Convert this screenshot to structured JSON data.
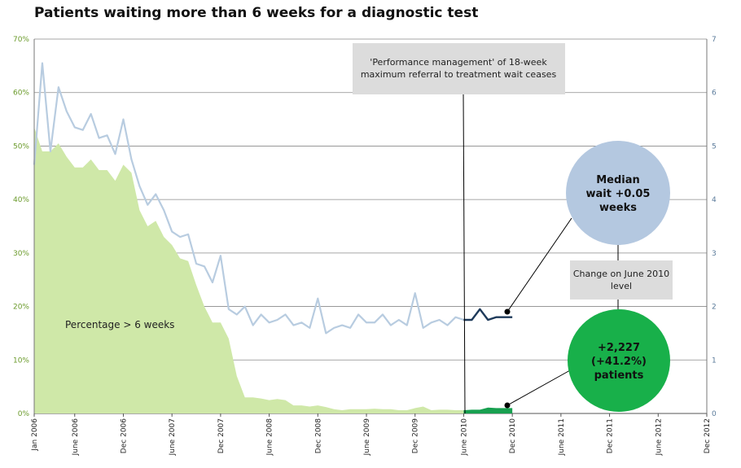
{
  "title": "Patients waiting more than 6 weeks for a diagnostic test",
  "annotations": {
    "performance_line1": "'Performance management' of 18-week",
    "performance_line2": "maximum referral to treatment wait ceases",
    "change_line1": "Change on June 2010",
    "change_line2": "level",
    "series_label": "Percentage > 6 weeks",
    "median_line1": "Median",
    "median_line2": "wait +0.05",
    "median_line3": "weeks",
    "patients_line1": "+2,227",
    "patients_line2": "(+41.2%)",
    "patients_line3": "patients"
  },
  "colors": {
    "area": "#cfe8a8",
    "area_after": "#18a050",
    "line": "#b8cce0",
    "line_after": "#1e3a5a",
    "median_circle": "#b4c8e0",
    "patients_circle": "#18b04a",
    "grid": "#8a8a8a",
    "box": "#dcdcdc"
  },
  "chart_data": {
    "type": "area",
    "title": "Patients waiting more than 6 weeks for a diagnostic test",
    "y_left_ticks": [
      "0%",
      "10%",
      "20%",
      "30%",
      "40%",
      "50%",
      "60%",
      "70%"
    ],
    "y_right_ticks": [
      "0",
      "1",
      "2",
      "3",
      "4",
      "5",
      "6",
      "7"
    ],
    "ylim_left": [
      0,
      70
    ],
    "ylim_right": [
      0,
      7
    ],
    "x_tick_labels": [
      "Jan 2006",
      "June 2006",
      "Dec 2006",
      "June 2007",
      "Dec 2007",
      "June 2008",
      "Dec 2008",
      "June 2009",
      "Dec 2009",
      "June 2010",
      "Dec 2010",
      "June 2011",
      "Dec 2011",
      "June 2012",
      "Dec 2012"
    ],
    "x_tick_months": [
      0,
      5,
      11,
      17,
      23,
      29,
      35,
      41,
      47,
      53,
      59,
      65,
      71,
      77,
      83
    ],
    "month_count": 84,
    "grid": true,
    "series": [
      {
        "name": "Percentage > 6 weeks",
        "axis": "left",
        "values": [
          53.5,
          49,
          49,
          50.5,
          48,
          46,
          46,
          47.5,
          45.5,
          45.5,
          43.5,
          46.5,
          45,
          38,
          35,
          36,
          33,
          31.5,
          29,
          28.5,
          24,
          20,
          17,
          17,
          14,
          7,
          3,
          3,
          2.8,
          2.5,
          2.7,
          2.5,
          1.5,
          1.5,
          1.3,
          1.5,
          1.2,
          0.8,
          0.6,
          0.8,
          0.8,
          0.8,
          0.9,
          0.8,
          0.8,
          0.6,
          0.6,
          1.0,
          1.3,
          0.6,
          0.7,
          0.7,
          0.6,
          0.6,
          0.7,
          0.7,
          1.1,
          1.0,
          1.0,
          1.0
        ]
      },
      {
        "name": "Median wait (weeks)",
        "axis": "right",
        "values": [
          4.65,
          6.55,
          4.9,
          6.1,
          5.65,
          5.35,
          5.3,
          5.6,
          5.15,
          5.2,
          4.85,
          5.5,
          4.75,
          4.25,
          3.9,
          4.1,
          3.8,
          3.4,
          3.3,
          3.35,
          2.8,
          2.75,
          2.45,
          2.95,
          1.95,
          1.85,
          2.0,
          1.65,
          1.85,
          1.7,
          1.75,
          1.85,
          1.65,
          1.7,
          1.6,
          2.15,
          1.5,
          1.6,
          1.65,
          1.6,
          1.85,
          1.7,
          1.7,
          1.85,
          1.65,
          1.75,
          1.65,
          2.25,
          1.6,
          1.7,
          1.75,
          1.65,
          1.8,
          1.75,
          1.75,
          1.95,
          1.75,
          1.8,
          1.8,
          1.8
        ]
      }
    ],
    "highlight_from_month": 53
  }
}
